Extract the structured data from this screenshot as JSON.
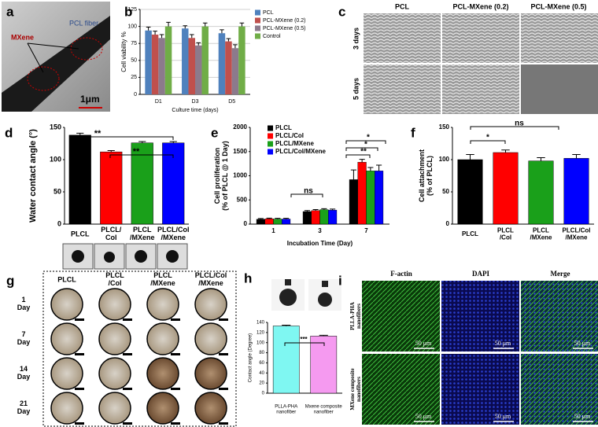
{
  "chart_data": [
    {
      "type": "bar",
      "panel": "b",
      "ylabel": "Cell viability %",
      "xlabel": "Culture time (days)",
      "categories": [
        "D1",
        "D3",
        "D5"
      ],
      "series": [
        {
          "name": "PCL",
          "color": "#4f81bd",
          "values": [
            94,
            97,
            90
          ],
          "errors": [
            5,
            4,
            5
          ]
        },
        {
          "name": "PCL-MXene (0.2)",
          "color": "#c0504d",
          "values": [
            88,
            83,
            78
          ],
          "errors": [
            5,
            5,
            4
          ]
        },
        {
          "name": "PCL-MXene (0.5)",
          "color": "#8c7a8c",
          "values": [
            83,
            72,
            68
          ],
          "errors": [
            5,
            4,
            5
          ]
        },
        {
          "name": "Control",
          "color": "#70ad47",
          "values": [
            100,
            100,
            100
          ],
          "errors": [
            6,
            5,
            5
          ]
        }
      ],
      "ylim": [
        0,
        125
      ],
      "yticks": [
        0,
        25,
        50,
        75,
        100,
        125
      ],
      "grid": true,
      "legend": "right"
    },
    {
      "type": "bar",
      "panel": "d",
      "ylabel": "Water contact angle (°)",
      "categories": [
        "PLCL",
        "PLCL/\nCol",
        "PLCL\n/MXene",
        "PLCL/Col\n/MXene"
      ],
      "values": [
        138,
        112,
        126,
        126
      ],
      "errors": [
        3,
        2,
        2,
        2
      ],
      "colors": [
        "#000000",
        "#ff0000",
        "#1aa01a",
        "#0000ff"
      ],
      "ylim": [
        0,
        150
      ],
      "yticks": [
        0,
        50,
        100,
        150
      ],
      "annotations": [
        "**",
        "**"
      ]
    },
    {
      "type": "bar",
      "panel": "e",
      "ylabel": "Cell proliferation\n(% of PLCL @ 1 Day)",
      "xlabel": "Incubation Time (Day)",
      "categories": [
        "1",
        "3",
        "7"
      ],
      "series": [
        {
          "name": "PLCL",
          "color": "#000000",
          "values": [
            100,
            260,
            920
          ],
          "errors": [
            15,
            20,
            200
          ]
        },
        {
          "name": "PLCL/Col",
          "color": "#ff0000",
          "values": [
            110,
            280,
            1280
          ],
          "errors": [
            15,
            20,
            60
          ]
        },
        {
          "name": "PLCL/MXene",
          "color": "#1aa01a",
          "values": [
            105,
            300,
            1100
          ],
          "errors": [
            15,
            20,
            70
          ]
        },
        {
          "name": "PLCL/Col/MXene",
          "color": "#0000ff",
          "values": [
            105,
            290,
            1100
          ],
          "errors": [
            15,
            20,
            120
          ]
        }
      ],
      "ylim": [
        0,
        2000
      ],
      "yticks": [
        0,
        500,
        1000,
        1500,
        2000
      ],
      "legend": "upper left",
      "annotations": [
        "ns",
        "*",
        "*",
        "**"
      ]
    },
    {
      "type": "bar",
      "panel": "f",
      "ylabel": "Cell attachment\n(% of PLCL)",
      "categories": [
        "PLCL",
        "PLCL\n/Col",
        "PLCL\n/MXene",
        "PLCL/Col\n/MXene"
      ],
      "values": [
        100,
        111,
        98,
        102
      ],
      "errors": [
        8,
        4,
        5,
        6
      ],
      "colors": [
        "#000000",
        "#ff0000",
        "#1aa01a",
        "#0000ff"
      ],
      "ylim": [
        0,
        150
      ],
      "yticks": [
        0,
        50,
        100,
        150
      ],
      "annotations": [
        "*",
        "ns"
      ]
    },
    {
      "type": "bar",
      "panel": "h",
      "ylabel": "Contact angle (Degree)",
      "categories": [
        "PLLA-PHA\nnanofiber",
        "Mxene composite\nnanofiber"
      ],
      "values": [
        133,
        113
      ],
      "errors": [
        1.5,
        1.5
      ],
      "colors": [
        "#7ff7f2",
        "#f59af0"
      ],
      "ylim": [
        0,
        140
      ],
      "yticks": [
        0,
        20,
        40,
        60,
        80,
        100,
        120,
        140
      ],
      "annotations": [
        "***"
      ]
    }
  ],
  "images": {
    "a": {
      "panel": "a",
      "labels": [
        "PCL fiber",
        "MXene",
        "1μm"
      ]
    },
    "c": {
      "panel": "c",
      "columns": [
        "PCL",
        "PCL-MXene (0.2)",
        "PCL-MXene (0.5)"
      ],
      "rows": [
        "3 days",
        "5 days"
      ]
    },
    "g": {
      "panel": "g",
      "columns": [
        "PLCL",
        "PLCL\n/Col",
        "PLCL\n/MXene",
        "PLCL/Col\n/MXene"
      ],
      "rows": [
        "1\nDay",
        "7\nDay",
        "14\nDay",
        "21\nDay"
      ]
    },
    "i": {
      "panel": "i",
      "columns": [
        "F-actin",
        "DAPI",
        "Merge"
      ],
      "rows": [
        "PLLA-PHA\nnanofibers",
        "MXene composite\nnanofibers"
      ],
      "scale": "50 μm"
    }
  }
}
